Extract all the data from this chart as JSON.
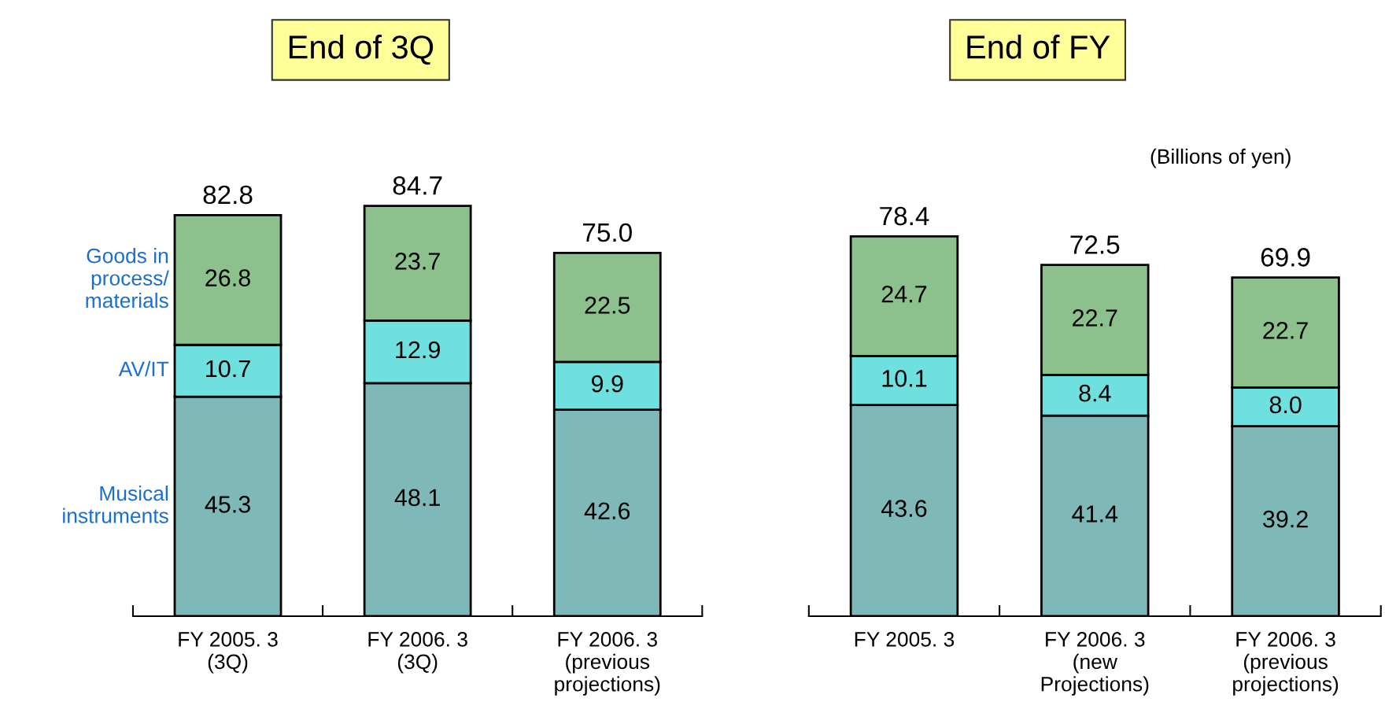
{
  "chart_data": [
    {
      "type": "bar",
      "title": "End of 3Q",
      "stacked": true,
      "data_labels": true,
      "legend": "left",
      "categories": [
        "FY 2005. 3\n(3Q)",
        "FY 2006. 3\n(3Q)",
        "FY 2006. 3\n(previous\nprojections)"
      ],
      "series": [
        {
          "name": "Musical\ninstruments",
          "color": "#7fb8b8",
          "values": [
            45.3,
            48.1,
            42.6
          ]
        },
        {
          "name": "AV/IT",
          "color": "#6fe0e0",
          "values": [
            10.7,
            12.9,
            9.9
          ],
          "value_labels": [
            "10.7",
            "12.9",
            "9.9"
          ]
        },
        {
          "name": "Goods in\nprocess/\nmaterials",
          "color": "#8cc08c",
          "values": [
            26.8,
            23.7,
            22.5
          ]
        }
      ],
      "totals": [
        "82.8",
        "84.7",
        "75.0"
      ]
    },
    {
      "type": "bar",
      "title": "End of FY",
      "stacked": true,
      "data_labels": true,
      "annotations": [
        "(Billions of yen)"
      ],
      "categories": [
        "FY 2005. 3",
        "FY 2006. 3\n(new\nProjections)",
        "FY 2006. 3\n(previous\nprojections)"
      ],
      "series": [
        {
          "color": "#7fb8b8",
          "values": [
            43.6,
            41.4,
            39.2
          ]
        },
        {
          "color": "#6fe0e0",
          "values": [
            10.1,
            8.4,
            8.0
          ],
          "value_labels": [
            "10.1",
            "8.4",
            "8.0"
          ]
        },
        {
          "color": "#8cc08c",
          "values": [
            24.7,
            22.7,
            22.7
          ]
        }
      ],
      "totals": [
        "78.4",
        "72.5",
        "69.9"
      ]
    }
  ]
}
